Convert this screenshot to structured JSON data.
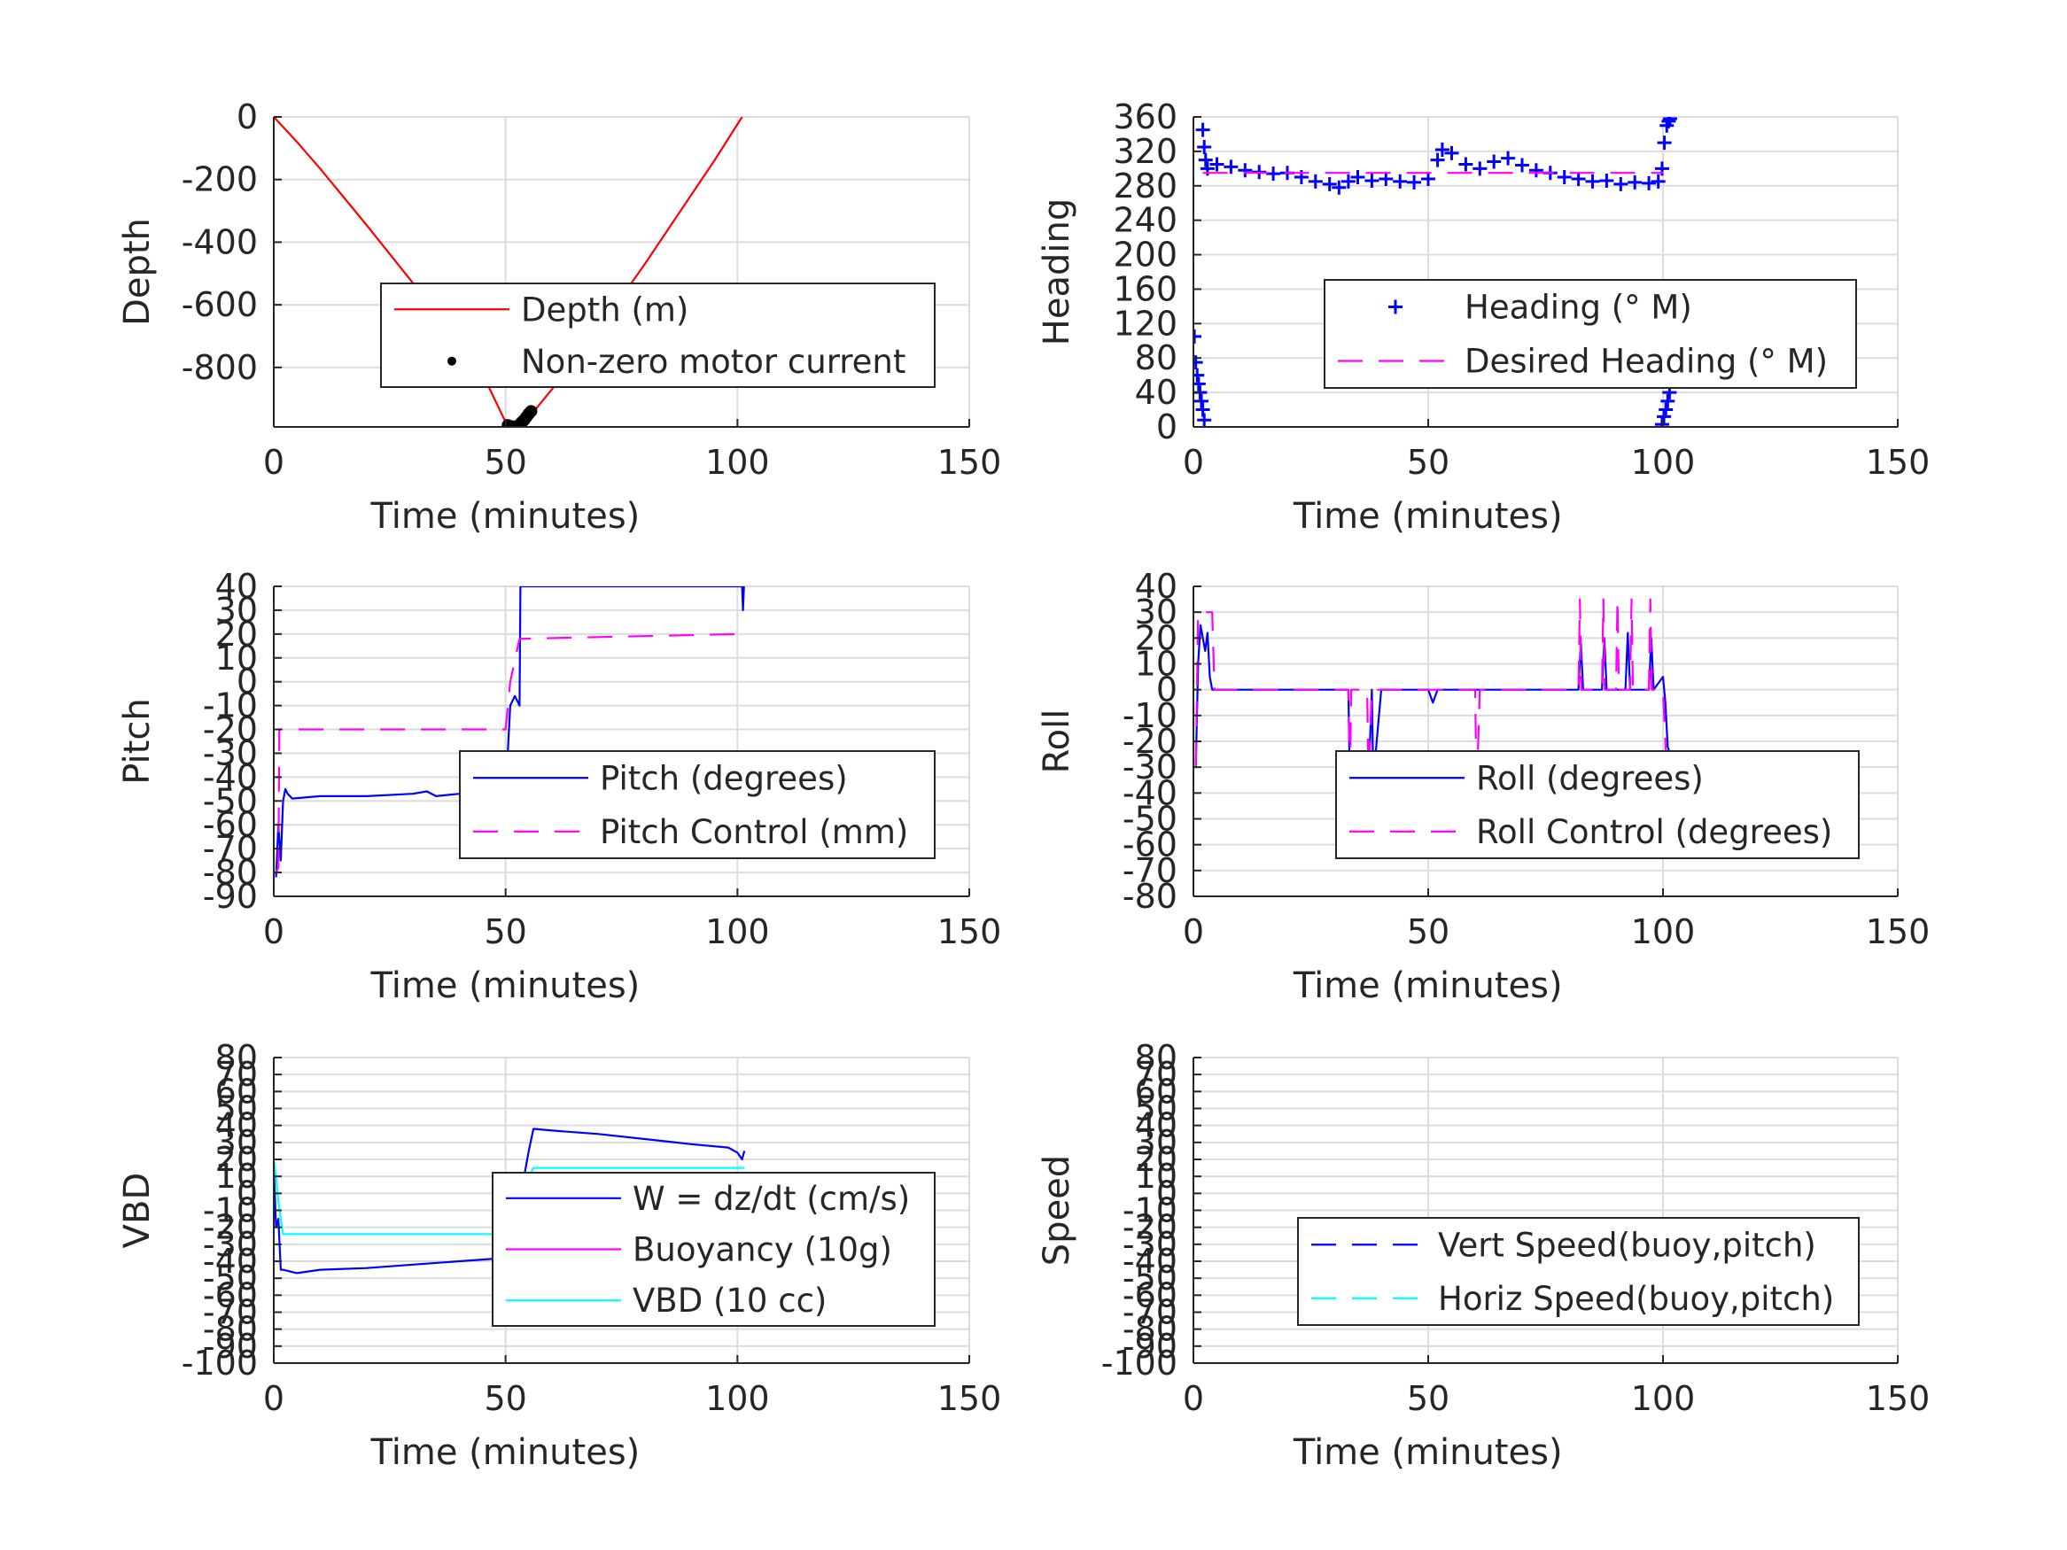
{
  "chart_data": [
    {
      "id": "depth",
      "type": "line",
      "xlabel": "Time (minutes)",
      "ylabel": "Depth",
      "xlim": [
        0,
        150
      ],
      "ylim": [
        -990,
        0
      ],
      "xticks": [
        0,
        50,
        100,
        150
      ],
      "yticks": [
        0,
        -200,
        -400,
        -600,
        -800
      ],
      "grid": true,
      "legend_position": "center-right",
      "series": [
        {
          "name": "Depth (m)",
          "color": "#ff0000",
          "style": "solid",
          "x": [
            0,
            5,
            10,
            20,
            30,
            40,
            45,
            50,
            52,
            55,
            60,
            70,
            80,
            90,
            95,
            101
          ],
          "y": [
            0,
            -80,
            -165,
            -345,
            -530,
            -720,
            -820,
            -975,
            -990,
            -960,
            -870,
            -680,
            -470,
            -250,
            -140,
            0
          ]
        },
        {
          "name": "Non-zero motor current",
          "color": "#000000",
          "style": "dots",
          "x": [
            50.5,
            51,
            51.5,
            52,
            52.5,
            53,
            53.5,
            54,
            54.5,
            55,
            55.5
          ],
          "y": [
            -985,
            -988,
            -989,
            -990,
            -988,
            -983,
            -975,
            -968,
            -958,
            -948,
            -940
          ]
        }
      ]
    },
    {
      "id": "heading",
      "type": "line",
      "xlabel": "Time (minutes)",
      "ylabel": "Heading",
      "xlim": [
        0,
        150
      ],
      "ylim": [
        0,
        360
      ],
      "xticks": [
        0,
        50,
        100,
        150
      ],
      "yticks": [
        0,
        40,
        80,
        120,
        160,
        200,
        240,
        280,
        320,
        360
      ],
      "grid": true,
      "legend_position": "center-right",
      "series": [
        {
          "name": "Heading (° M)",
          "color": "#0000ff",
          "style": "plus",
          "x": [
            0.2,
            0.5,
            0.8,
            1.1,
            1.4,
            1.7,
            2.0,
            2.3,
            2.0,
            2.3,
            2.6,
            3,
            5,
            8,
            11,
            14,
            17,
            20,
            23,
            26,
            29,
            31,
            33,
            35,
            38,
            41,
            44,
            47,
            50,
            52,
            53,
            55,
            58,
            61,
            64,
            67,
            70,
            73,
            76,
            79,
            82,
            85,
            88,
            91,
            94,
            97,
            99,
            99.8,
            100.3,
            100.8,
            101.2,
            101.5,
            99.8,
            100.2,
            100.6,
            101.0,
            101.4
          ],
          "y": [
            105,
            75,
            60,
            50,
            40,
            30,
            20,
            8,
            345,
            325,
            310,
            300,
            305,
            302,
            298,
            296,
            294,
            295,
            290,
            285,
            282,
            278,
            285,
            290,
            286,
            288,
            285,
            284,
            288,
            310,
            322,
            318,
            305,
            300,
            308,
            312,
            304,
            298,
            295,
            290,
            288,
            285,
            286,
            282,
            284,
            283,
            285,
            300,
            330,
            350,
            355,
            358,
            3,
            12,
            20,
            30,
            40
          ]
        },
        {
          "name": "Desired Heading (° M)",
          "color": "#ff00ff",
          "style": "dashed",
          "x": [
            2,
            100
          ],
          "y": [
            295,
            295
          ]
        }
      ]
    },
    {
      "id": "pitch",
      "type": "line",
      "xlabel": "Time (minutes)",
      "ylabel": "Pitch",
      "xlim": [
        0,
        150
      ],
      "ylim": [
        -90,
        40
      ],
      "xticks": [
        0,
        50,
        100,
        150
      ],
      "yticks": [
        -90,
        -80,
        -70,
        -60,
        -50,
        -40,
        -30,
        -20,
        -10,
        0,
        10,
        20,
        30,
        40
      ],
      "grid": true,
      "legend_position": "center-right",
      "series": [
        {
          "name": "Pitch (degrees)",
          "color": "#0000ff",
          "style": "solid",
          "x": [
            0.5,
            1,
            1.5,
            2,
            2.5,
            3,
            4,
            10,
            20,
            30,
            33,
            35,
            40,
            45,
            50,
            51,
            52,
            53,
            53.2,
            53.5,
            101,
            101.2,
            101.4
          ],
          "y": [
            -82,
            -60,
            -75,
            -50,
            -45,
            -47,
            -49,
            -48,
            -48,
            -47,
            -46,
            -48,
            -47,
            -47,
            -47,
            -10,
            -6,
            -10,
            40,
            40,
            40,
            30,
            40
          ]
        },
        {
          "name": "Pitch Control (mm)",
          "color": "#ff00ff",
          "style": "dashed",
          "x": [
            0.5,
            1,
            1.2,
            50,
            50.5,
            51,
            53,
            101
          ],
          "y": [
            -80,
            -78,
            -20,
            -20,
            -10,
            0,
            18,
            20
          ]
        }
      ]
    },
    {
      "id": "roll",
      "type": "line",
      "xlabel": "Time (minutes)",
      "ylabel": "Roll",
      "xlim": [
        0,
        150
      ],
      "ylim": [
        -80,
        40
      ],
      "xticks": [
        0,
        50,
        100,
        150
      ],
      "yticks": [
        -80,
        -70,
        -60,
        -50,
        -40,
        -30,
        -20,
        -10,
        0,
        10,
        20,
        30,
        40
      ],
      "grid": true,
      "legend_position": "center-right",
      "series": [
        {
          "name": "Roll (degrees)",
          "color": "#0000ff",
          "style": "solid",
          "x": [
            0.5,
            1,
            1.5,
            2,
            2.5,
            3,
            3.5,
            4,
            10,
            20,
            30,
            33,
            33.3,
            37,
            37.3,
            38,
            38.3,
            40,
            50,
            51,
            52,
            55,
            60,
            65,
            70,
            80,
            82,
            82.5,
            83,
            87,
            87.5,
            88,
            92,
            92.5,
            93,
            97,
            97.5,
            98,
            100,
            100.5,
            101,
            101.5,
            102
          ],
          "y": [
            -30,
            10,
            25,
            20,
            15,
            22,
            5,
            0,
            0,
            0,
            0,
            0,
            -35,
            -35,
            -35,
            0,
            -35,
            0,
            0,
            -5,
            0,
            0,
            0,
            0,
            0,
            0,
            0,
            18,
            0,
            0,
            20,
            0,
            0,
            22,
            0,
            0,
            20,
            0,
            5,
            -5,
            -22,
            -25,
            -30
          ]
        },
        {
          "name": "Roll Control (degrees)",
          "color": "#ff00ff",
          "style": "dashed",
          "x": [
            0.5,
            1,
            1.5,
            4,
            4.5,
            33,
            33.3,
            33.6,
            34,
            37,
            37.3,
            38,
            50,
            60,
            60.3,
            61,
            82,
            82.3,
            82.6,
            87,
            87.3,
            87.6,
            90,
            90.3,
            90.6,
            93,
            93.3,
            93.6,
            97,
            97.3,
            97.6,
            100,
            101,
            101.5
          ],
          "y": [
            -30,
            30,
            30,
            30,
            0,
            0,
            -40,
            0,
            0,
            0,
            -40,
            0,
            0,
            0,
            -40,
            0,
            0,
            35,
            0,
            0,
            35,
            0,
            0,
            35,
            0,
            0,
            35,
            0,
            0,
            35,
            0,
            0,
            -40,
            -40
          ]
        }
      ]
    },
    {
      "id": "vbd",
      "type": "line",
      "xlabel": "Time (minutes)",
      "ylabel": "VBD",
      "xlim": [
        0,
        150
      ],
      "ylim": [
        -100,
        80
      ],
      "xticks": [
        0,
        50,
        100,
        150
      ],
      "yticks": [
        -100,
        -90,
        -80,
        -70,
        -60,
        -50,
        -40,
        -30,
        -20,
        -10,
        0,
        10,
        20,
        30,
        40,
        50,
        60,
        70,
        80
      ],
      "yticklabels_overlap": true,
      "grid": true,
      "legend_position": "center-right",
      "series": [
        {
          "name": "W = dz/dt (cm/s)",
          "color": "#0000ff",
          "style": "solid",
          "x": [
            0,
            0.5,
            1,
            1.5,
            2,
            5,
            10,
            20,
            30,
            40,
            45,
            50,
            50.5,
            51,
            52,
            53,
            54,
            55,
            56,
            60,
            70,
            80,
            90,
            98,
            100,
            101,
            101.5
          ],
          "y": [
            15,
            -20,
            -15,
            -45,
            -45,
            -47,
            -45,
            -44,
            -42,
            -40,
            -39,
            -38,
            -25,
            -20,
            -10,
            0,
            10,
            25,
            38,
            37,
            35,
            32,
            29,
            27,
            24,
            20,
            25
          ]
        },
        {
          "name": "Buoyancy (10g)",
          "color": "#ff00ff",
          "style": "solid",
          "x": [
            50,
            52,
            53,
            101
          ],
          "y": [
            -22,
            -22,
            -22,
            -22
          ]
        },
        {
          "name": "VBD (10 cc)",
          "color": "#00ffff",
          "style": "solid",
          "x": [
            0,
            0.5,
            1,
            1.5,
            2,
            50,
            50.5,
            51,
            52,
            53,
            54,
            55,
            56,
            101.5
          ],
          "y": [
            20,
            10,
            -5,
            -15,
            -24,
            -24,
            -22,
            -18,
            -10,
            -5,
            0,
            10,
            15,
            15
          ]
        }
      ]
    },
    {
      "id": "speed",
      "type": "line",
      "xlabel": "Time (minutes)",
      "ylabel": "Speed",
      "xlim": [
        0,
        150
      ],
      "ylim": [
        -100,
        80
      ],
      "xticks": [
        0,
        50,
        100,
        150
      ],
      "yticks": [
        -100,
        -90,
        -80,
        -70,
        -60,
        -50,
        -40,
        -30,
        -20,
        -10,
        0,
        10,
        20,
        30,
        40,
        50,
        60,
        70,
        80
      ],
      "yticklabels_overlap": true,
      "grid": true,
      "legend_position": "bottom-right",
      "series": [
        {
          "name": "Vert Speed(buoy,pitch)",
          "color": "#0000ff",
          "style": "dashed",
          "x": [],
          "y": []
        },
        {
          "name": "Horiz Speed(buoy,pitch)",
          "color": "#00ffff",
          "style": "dashed",
          "x": [],
          "y": []
        }
      ]
    }
  ]
}
